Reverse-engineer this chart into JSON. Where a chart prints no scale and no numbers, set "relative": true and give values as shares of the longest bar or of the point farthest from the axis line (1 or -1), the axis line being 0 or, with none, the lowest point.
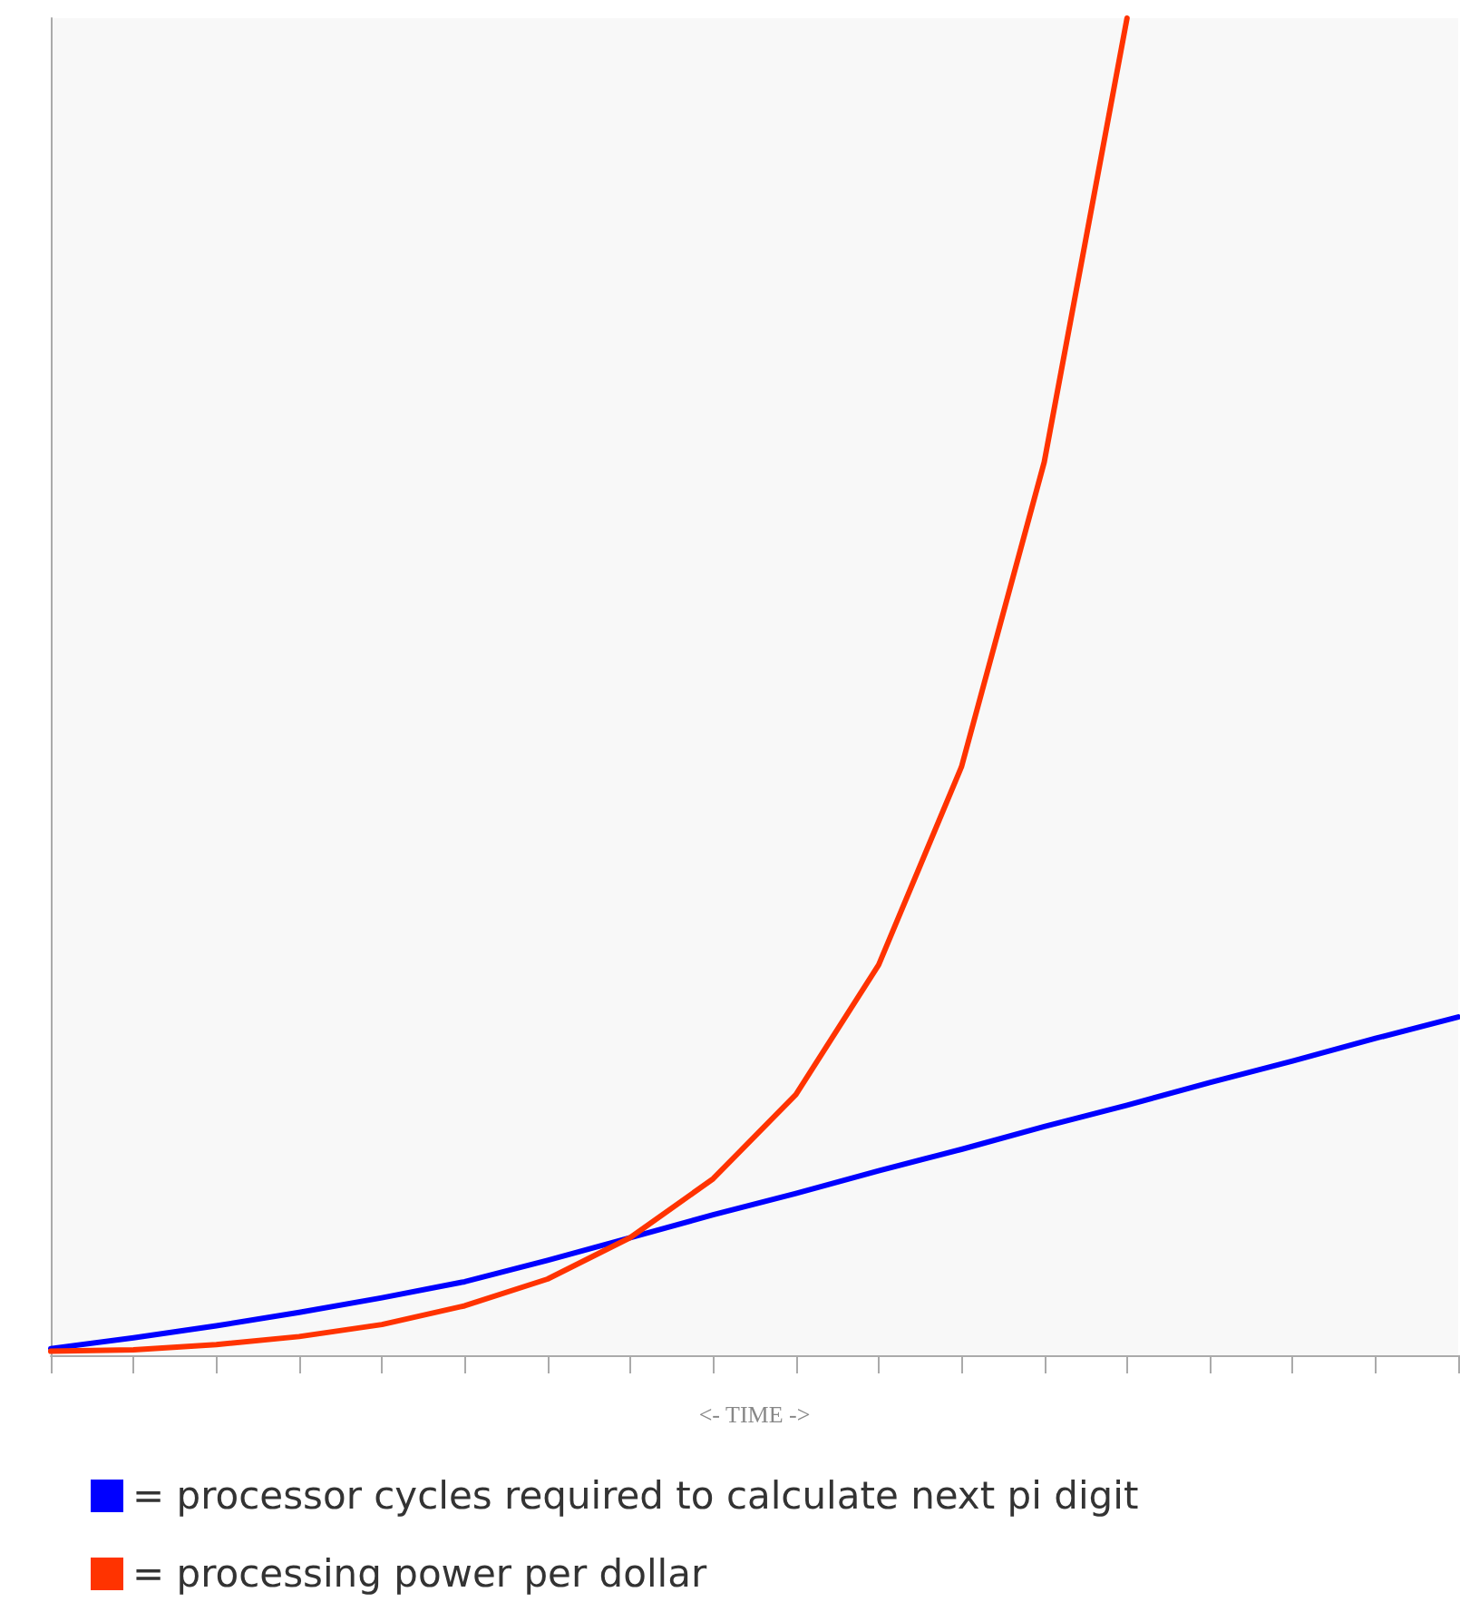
{
  "chart_data": {
    "type": "line",
    "relative": true,
    "xlabel": "<- TIME ->",
    "legend": "bottom left",
    "grid": false,
    "tick_labels": false,
    "marker": "none",
    "line_style": "solid",
    "categories": [
      null,
      null,
      null,
      null,
      null,
      null,
      null,
      null,
      null,
      null,
      null,
      null,
      null,
      null,
      null,
      null,
      null,
      null
    ],
    "series": [
      {
        "name": "= processor cycles required to calculate next pi digit",
        "color": "#0000ff",
        "values": [
          0.005,
          0.013,
          0.022,
          0.032,
          0.043,
          0.055,
          0.071,
          0.088,
          0.105,
          0.121,
          0.138,
          0.154,
          0.171,
          0.187,
          0.204,
          0.22,
          0.237,
          0.253
        ]
      },
      {
        "name": "= processing power per dollar",
        "color": "#ff3300",
        "values": [
          0.003,
          0.004,
          0.008,
          0.014,
          0.023,
          0.037,
          0.057,
          0.088,
          0.132,
          0.195,
          0.292,
          0.44,
          0.668,
          1.0,
          null,
          null,
          null,
          null
        ]
      }
    ]
  }
}
